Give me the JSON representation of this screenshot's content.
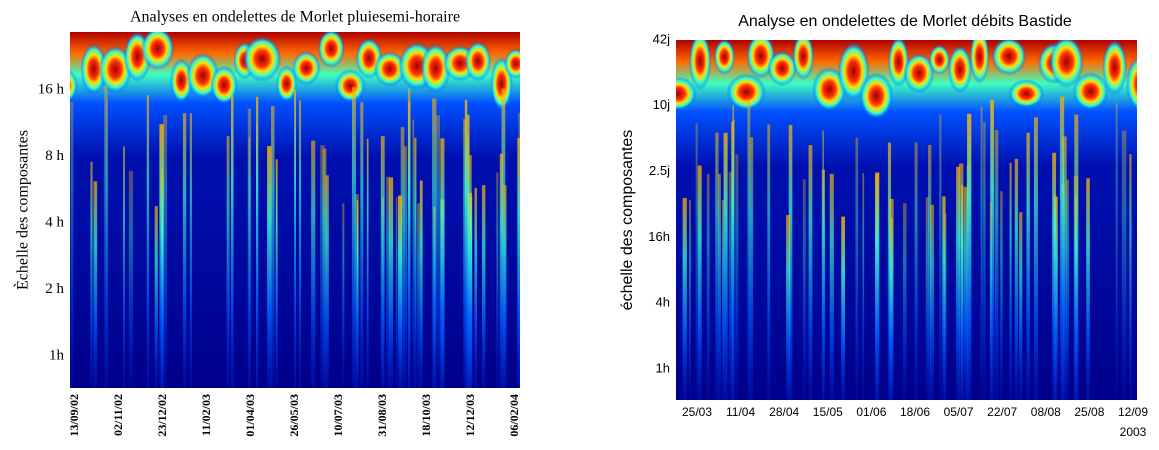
{
  "chart_data": [
    {
      "type": "heatmap",
      "title": "Analyses en ondelettes de Morlet pluiesemi-horaire",
      "ylabel": "Èchelle des composantes",
      "categories": [
        "13/09/02",
        "02/11/02",
        "23/12/02",
        "11/02/03",
        "01/04/03",
        "26/05/03",
        "10/07/03",
        "31/08/03",
        "18/10/03",
        "12/12/03",
        "06/02/04"
      ],
      "y_categories": [
        "16 h",
        "8 h",
        "4 h",
        "2 h",
        "1h"
      ]
    },
    {
      "type": "heatmap",
      "title": "Analyse en ondelettes de Morlet débits Bastide",
      "ylabel": "échelle des composantes",
      "xlabel": "2003",
      "categories": [
        "25/03",
        "11/04",
        "28/04",
        "15/05",
        "01/06",
        "18/06",
        "05/07",
        "22/07",
        "08/08",
        "25/08",
        "12/09"
      ],
      "y_categories": [
        "42j",
        "10j",
        "2.5j",
        "16h",
        "4h",
        "1h"
      ]
    }
  ]
}
